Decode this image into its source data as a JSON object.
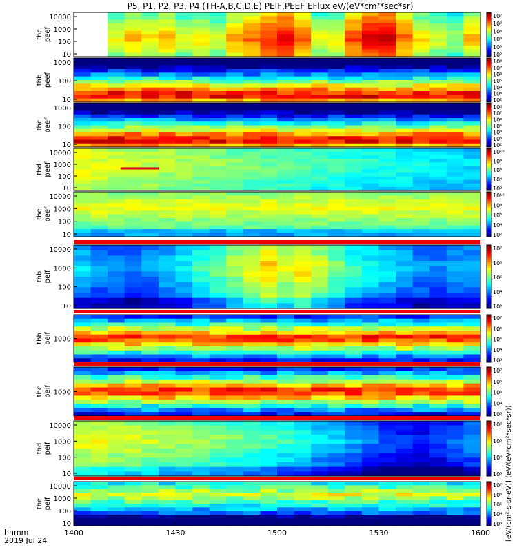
{
  "chart_data": {
    "type": "heatmap",
    "title": "P5, P1, P2, P3, P4 (TH-A,B,C,D,E) PEIF,PEEF EFlux eV/(eV*cm²*sec*sr)",
    "xlabel": "hhmm",
    "date_label": "2019 Jul 24",
    "x_ticks": [
      "1400",
      "1430",
      "1500",
      "1530",
      "1600"
    ],
    "xlim": [
      "14:00",
      "16:00"
    ],
    "y_scale": "log",
    "colorbar_label": "[eV/(cm²-s-sr-eV)] (eV/(eV*cm²*sec*sr))",
    "panels": [
      {
        "ylabel": [
          "thc",
          "peef"
        ],
        "yticks": [
          "10000",
          "1000",
          "100",
          "10"
        ],
        "cbar_ticks": [
          "10⁷",
          "10⁶",
          "10⁵",
          "10⁴",
          "10³",
          "10²"
        ],
        "pattern": "temporal",
        "profile": [
          0.55,
          0.55,
          0.62,
          0.7,
          0.66,
          0.7,
          0.62,
          0.66,
          0.6,
          0.72,
          0.78,
          0.85,
          0.9,
          0.8,
          0.62,
          0.65,
          0.82,
          0.92,
          0.94,
          0.78,
          0.66,
          0.6,
          0.55,
          0.7
        ],
        "blank_until": 0.06
      },
      {
        "ylabel": [
          "thb",
          "peef"
        ],
        "yticks": [
          "1000",
          "100",
          "10"
        ],
        "cbar_ticks": [
          "10⁸",
          "10⁷",
          "10⁶",
          "10⁵",
          "10⁴",
          "10³",
          "10²"
        ],
        "pattern": "band_low"
      },
      {
        "ylabel": [
          "thc",
          "peef"
        ],
        "yticks": [
          "1000",
          "100",
          "10"
        ],
        "cbar_ticks": [
          "10⁸",
          "10⁷",
          "10⁶",
          "10⁵",
          "10⁴",
          "10³",
          "10²"
        ],
        "pattern": "band_low"
      },
      {
        "ylabel": [
          "thd",
          "peef"
        ],
        "yticks": [
          "10000",
          "1000",
          "100",
          "10"
        ],
        "cbar_ticks": [
          "10¹⁰",
          "10⁸",
          "10⁶",
          "10⁴",
          "10²"
        ],
        "pattern": "decay",
        "marker": {
          "from": 0.115,
          "to": 0.21
        }
      },
      {
        "ylabel": [
          "the",
          "peef"
        ],
        "yticks": [
          "10000",
          "1000",
          "100",
          "10"
        ],
        "cbar_ticks": [
          "10¹⁰",
          "10⁸",
          "10⁶",
          "10⁴",
          "10²"
        ],
        "pattern": "uniform"
      },
      {
        "ylabel": [
          "thb",
          "peif"
        ],
        "yticks": [
          "10000",
          "1000",
          "100",
          "10"
        ],
        "cbar_ticks": [
          "10⁷",
          "10⁶",
          "10⁵",
          "10⁴",
          "10³"
        ],
        "pattern": "temporal_ion",
        "profile": [
          0.35,
          0.3,
          0.28,
          0.26,
          0.3,
          0.34,
          0.38,
          0.44,
          0.5,
          0.55,
          0.62,
          0.68,
          0.6,
          0.66,
          0.58,
          0.5,
          0.44,
          0.4,
          0.38,
          0.33,
          0.3,
          0.28,
          0.3,
          0.32
        ],
        "top_bar": true
      },
      {
        "ylabel": [
          "thb",
          "peif"
        ],
        "yticks": [
          "1000"
        ],
        "cbar_ticks": [
          "10⁷",
          "10⁶",
          "10⁵",
          "10⁴",
          "10³"
        ],
        "pattern": "ion_band",
        "top_bar": true
      },
      {
        "ylabel": [
          "thc",
          "peif"
        ],
        "yticks": [
          "1000"
        ],
        "cbar_ticks": [
          "10⁷",
          "10⁶",
          "10⁵",
          "10⁴",
          "10³"
        ],
        "pattern": "ion_band",
        "top_bar": true
      },
      {
        "ylabel": [
          "thd",
          "peif"
        ],
        "yticks": [
          "10000",
          "1000",
          "100",
          "10"
        ],
        "cbar_ticks": [
          "10⁶",
          "10⁵",
          "10⁴",
          "10³"
        ],
        "pattern": "temporal_ion",
        "profile": [
          0.62,
          0.62,
          0.6,
          0.6,
          0.58,
          0.56,
          0.55,
          0.54,
          0.52,
          0.5,
          0.48,
          0.46,
          0.44,
          0.4,
          0.36,
          0.34,
          0.3,
          0.26,
          0.22,
          0.18,
          0.16,
          0.2,
          0.24,
          0.28
        ],
        "top_bar": true
      },
      {
        "ylabel": [
          "the",
          "peif"
        ],
        "yticks": [
          "10000",
          "1000",
          "100",
          "10"
        ],
        "cbar_ticks": [
          "10⁷",
          "10⁶",
          "10⁵",
          "10⁴",
          "10³"
        ],
        "pattern": "ion_band_low",
        "top_bar": true
      }
    ]
  }
}
